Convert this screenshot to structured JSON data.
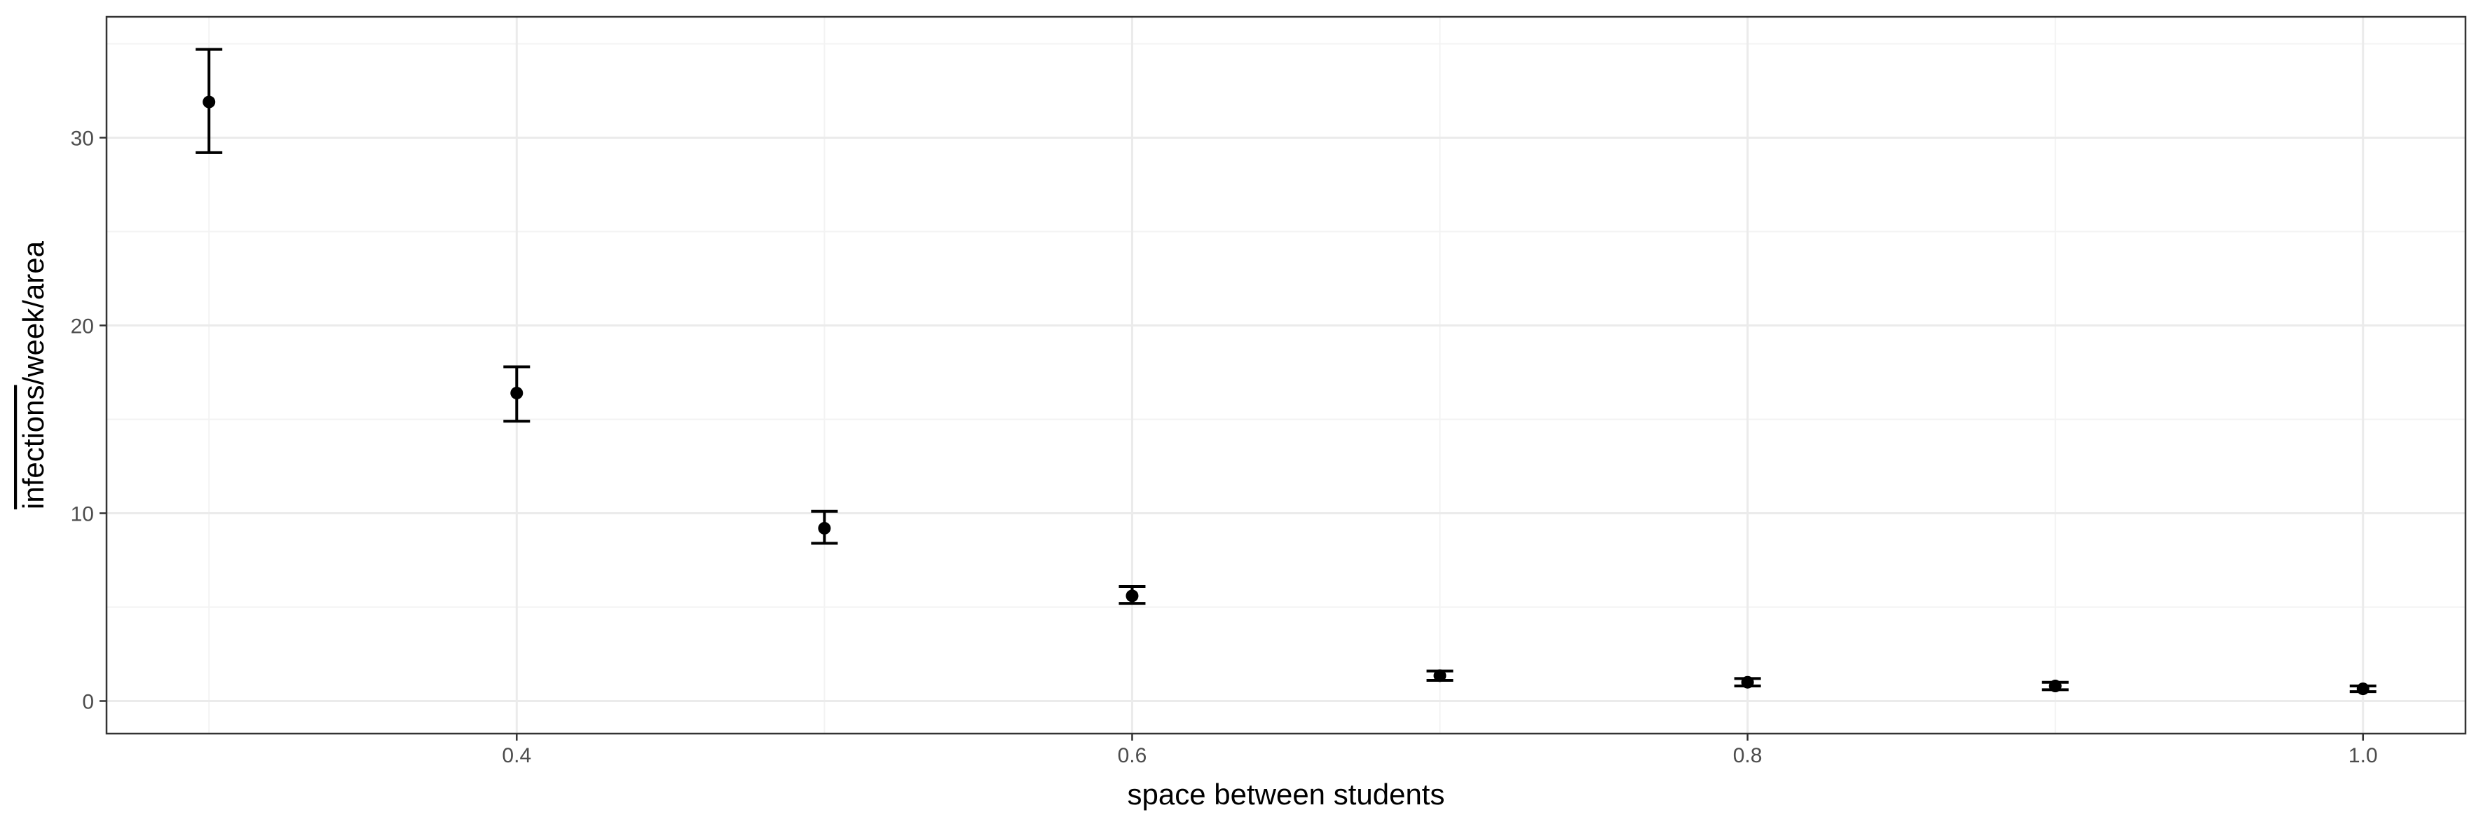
{
  "chart_data": {
    "type": "scatter",
    "title": "",
    "xlabel": "space between students",
    "ylabel": "infections/week/area",
    "ylabel_overline": "infections",
    "ylabel_suffix": "/week/area",
    "xlim": [
      0.2667,
      1.0333
    ],
    "ylim": [
      -1.735,
      36.435
    ],
    "x_ticks": [
      0.4,
      0.6,
      0.8,
      1.0
    ],
    "x_tick_labels": [
      "0.4",
      "0.6",
      "0.8",
      "1.0"
    ],
    "y_ticks": [
      0,
      10,
      20,
      30
    ],
    "y_tick_labels": [
      "0",
      "10",
      "20",
      "30"
    ],
    "grid": true,
    "legend": "none",
    "series": [
      {
        "points": [
          {
            "x": 0.3,
            "y": 31.9,
            "ymin": 29.2,
            "ymax": 34.7
          },
          {
            "x": 0.4,
            "y": 16.4,
            "ymin": 14.9,
            "ymax": 17.8
          },
          {
            "x": 0.5,
            "y": 9.2,
            "ymin": 8.4,
            "ymax": 10.1
          },
          {
            "x": 0.6,
            "y": 5.6,
            "ymin": 5.2,
            "ymax": 6.1
          },
          {
            "x": 0.7,
            "y": 1.35,
            "ymin": 1.1,
            "ymax": 1.6
          },
          {
            "x": 0.8,
            "y": 1.0,
            "ymin": 0.8,
            "ymax": 1.2
          },
          {
            "x": 0.9,
            "y": 0.8,
            "ymin": 0.6,
            "ymax": 1.0
          },
          {
            "x": 1.0,
            "y": 0.65,
            "ymin": 0.5,
            "ymax": 0.8
          }
        ]
      }
    ]
  }
}
